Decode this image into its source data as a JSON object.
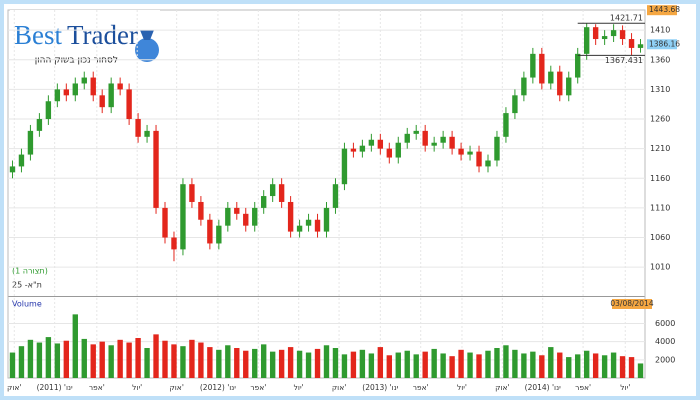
{
  "header": {
    "logo_first": "Best",
    "logo_second": "Trader",
    "tagline": "לסחור נכון בשוק ההון"
  },
  "chart_data": [
    {
      "type": "candlestick",
      "title": "ת\"א- 25",
      "subtitle": "(תצורה 1)",
      "x": [
        0.5,
        1.5,
        2.5,
        3.5,
        4.5,
        5.5,
        6.5,
        7.5,
        8.5,
        9.5,
        10.5,
        11.5,
        12.5,
        13.5,
        14.5,
        15.5,
        16.5,
        17.5,
        18.5,
        19.5,
        20.5,
        21.5,
        22.5,
        23.5,
        24.5,
        25.5,
        26.5,
        27.5,
        28.5,
        29.5,
        30.5,
        31.5,
        32.5,
        33.5,
        34.5,
        35.5,
        36.5,
        37.5,
        38.5,
        39.5,
        40.5,
        41.5,
        42.5,
        43.5,
        44.5,
        45.5,
        46.5,
        47.5,
        48.5,
        49.5,
        50.5,
        51.5,
        52.5,
        53.5,
        54.5,
        55.5,
        56.5,
        57.5,
        58.5,
        59.5,
        60.5,
        61.5,
        62.5,
        63.5,
        64.5,
        65.5,
        66.5,
        67.5,
        68.5,
        69.5,
        70.5
      ],
      "open": [
        1170,
        1180,
        1200,
        1240,
        1260,
        1290,
        1310,
        1300,
        1320,
        1330,
        1300,
        1280,
        1320,
        1310,
        1260,
        1230,
        1240,
        1110,
        1060,
        1040,
        1150,
        1120,
        1090,
        1050,
        1080,
        1110,
        1100,
        1080,
        1110,
        1130,
        1150,
        1120,
        1070,
        1080,
        1090,
        1070,
        1110,
        1150,
        1210,
        1205,
        1215,
        1225,
        1210,
        1195,
        1220,
        1235,
        1240,
        1215,
        1220,
        1230,
        1210,
        1200,
        1205,
        1180,
        1190,
        1230,
        1270,
        1300,
        1330,
        1370,
        1320,
        1340,
        1300,
        1330,
        1370,
        1415,
        1395,
        1400,
        1410,
        1395,
        1380
      ],
      "high": [
        1190,
        1210,
        1250,
        1270,
        1300,
        1320,
        1320,
        1330,
        1340,
        1340,
        1310,
        1330,
        1330,
        1320,
        1270,
        1250,
        1250,
        1120,
        1070,
        1160,
        1160,
        1130,
        1100,
        1090,
        1120,
        1120,
        1110,
        1120,
        1140,
        1160,
        1160,
        1130,
        1090,
        1100,
        1100,
        1120,
        1160,
        1220,
        1220,
        1225,
        1235,
        1235,
        1220,
        1230,
        1245,
        1250,
        1250,
        1230,
        1240,
        1240,
        1220,
        1215,
        1215,
        1200,
        1240,
        1280,
        1310,
        1340,
        1380,
        1380,
        1350,
        1350,
        1340,
        1380,
        1421.71,
        1420,
        1410,
        1420,
        1418,
        1405,
        1395
      ],
      "low": [
        1160,
        1170,
        1190,
        1230,
        1250,
        1280,
        1290,
        1290,
        1310,
        1290,
        1270,
        1270,
        1300,
        1250,
        1220,
        1220,
        1100,
        1050,
        1020,
        1030,
        1110,
        1080,
        1040,
        1040,
        1070,
        1090,
        1070,
        1070,
        1100,
        1120,
        1110,
        1060,
        1060,
        1070,
        1060,
        1060,
        1100,
        1140,
        1195,
        1195,
        1205,
        1200,
        1185,
        1185,
        1210,
        1225,
        1205,
        1205,
        1210,
        1200,
        1190,
        1190,
        1170,
        1170,
        1180,
        1220,
        1260,
        1290,
        1320,
        1310,
        1310,
        1290,
        1290,
        1320,
        1360,
        1385,
        1385,
        1390,
        1385,
        1367.431,
        1372
      ],
      "close": [
        1180,
        1200,
        1240,
        1260,
        1290,
        1310,
        1300,
        1320,
        1330,
        1300,
        1280,
        1320,
        1310,
        1260,
        1230,
        1240,
        1110,
        1060,
        1040,
        1150,
        1120,
        1090,
        1050,
        1080,
        1110,
        1100,
        1080,
        1110,
        1130,
        1150,
        1120,
        1070,
        1080,
        1090,
        1070,
        1110,
        1150,
        1210,
        1205,
        1215,
        1225,
        1210,
        1195,
        1220,
        1235,
        1240,
        1215,
        1220,
        1230,
        1210,
        1200,
        1205,
        1180,
        1190,
        1230,
        1270,
        1300,
        1330,
        1370,
        1320,
        1340,
        1300,
        1330,
        1370,
        1415,
        1395,
        1400,
        1410,
        1395,
        1380,
        1386.16
      ],
      "up_color": "#2f9a2f",
      "down_color": "#e3261c",
      "xlim": [
        0,
        71
      ],
      "xticks": [
        {
          "value": 0.7,
          "label": "אוק'"
        },
        {
          "value": 5.2,
          "label": "ינו' (2011)"
        },
        {
          "value": 9.9,
          "label": "אפר'"
        },
        {
          "value": 14.4,
          "label": "יול'"
        },
        {
          "value": 18.8,
          "label": "אוק'"
        },
        {
          "value": 23.4,
          "label": "ינו' (2012)"
        },
        {
          "value": 27.9,
          "label": "אפר'"
        },
        {
          "value": 32.4,
          "label": "יול'"
        },
        {
          "value": 36.9,
          "label": "אוק'"
        },
        {
          "value": 41.5,
          "label": "ינו' (2013)"
        },
        {
          "value": 46,
          "label": "אפר'"
        },
        {
          "value": 50.6,
          "label": "יול'"
        },
        {
          "value": 55.1,
          "label": "אוק'"
        },
        {
          "value": 59.6,
          "label": "ינו' (2014)"
        },
        {
          "value": 64.1,
          "label": "אפר'"
        },
        {
          "value": 68.8,
          "label": "יול'"
        }
      ],
      "ylim": [
        963,
        1444
      ],
      "yticks": [
        1010,
        1060,
        1110,
        1160,
        1210,
        1260,
        1310,
        1360,
        1410
      ],
      "range_lines": [
        1421.71,
        1367.431
      ],
      "price_tags": [
        {
          "value": 1443.68,
          "color": "#f5a742"
        },
        {
          "value": 1386.16,
          "color": "#8fd0f5"
        }
      ],
      "grid": true
    },
    {
      "type": "bar",
      "title": "Volume",
      "date_label": "03/08/2014",
      "values": [
        2800,
        3500,
        4200,
        3900,
        4500,
        3800,
        4100,
        7000,
        4300,
        3700,
        4000,
        3600,
        4200,
        3900,
        4400,
        3300,
        4800,
        4100,
        3700,
        3500,
        4200,
        3900,
        3400,
        3100,
        3600,
        3300,
        3000,
        3200,
        3700,
        2900,
        3100,
        3400,
        3000,
        2800,
        3200,
        3600,
        3300,
        2600,
        2900,
        3100,
        2700,
        3400,
        2500,
        2800,
        3000,
        2600,
        2900,
        3200,
        2700,
        2400,
        3100,
        2800,
        2600,
        3000,
        3300,
        3600,
        3100,
        2700,
        2900,
        2500,
        3400,
        2800,
        2300,
        2600,
        3000,
        2700,
        2500,
        2800,
        2400,
        2300,
        1600
      ],
      "ylim": [
        0,
        8800
      ],
      "yticks": [
        2000,
        4000,
        6000
      ],
      "grid": true
    }
  ]
}
